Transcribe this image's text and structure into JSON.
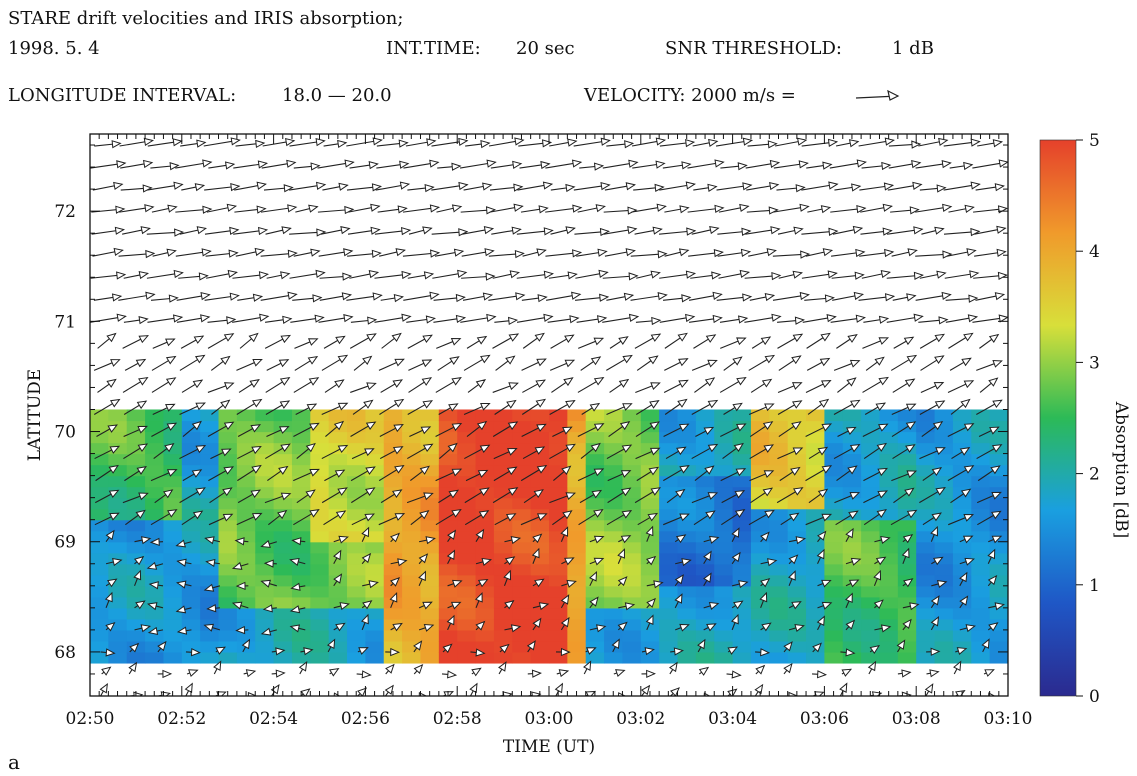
{
  "header": {
    "title": "STARE drift velocities and IRIS absorption;",
    "date": "1998. 5. 4",
    "int_time_label": "INT.TIME:",
    "int_time_value": "20 sec",
    "snr_label": "SNR THRESHOLD:",
    "snr_value": "1 dB",
    "lon_label": "LONGITUDE INTERVAL:",
    "lon_value": "18.0 —  20.0",
    "velocity_label": "VELOCITY: 2000 m/s ="
  },
  "panel_label": "a",
  "chart_data": {
    "type": "heatmap",
    "overlay": "vector-field",
    "title": "STARE drift velocities and IRIS absorption;",
    "xlabel": "TIME (UT)",
    "ylabel": "LATITUDE",
    "colorbar_label": "Absorption [dB]",
    "xlim": [
      "02:50",
      "03:10"
    ],
    "ylim": [
      67.6,
      72.7
    ],
    "x_ticks": [
      "02:50",
      "02:52",
      "02:54",
      "02:56",
      "02:58",
      "03:00",
      "03:02",
      "03:04",
      "03:06",
      "03:08",
      "03:10"
    ],
    "y_ticks": [
      "68",
      "69",
      "70",
      "71",
      "72"
    ],
    "colorbar_ticks": [
      "0",
      "1",
      "2",
      "3",
      "4",
      "5"
    ],
    "colorbar_range": [
      0,
      5
    ],
    "colormap": [
      "#2b2a8f",
      "#1f57c6",
      "#1a9fe0",
      "#2cba57",
      "#d8df3a",
      "#f09a2b",
      "#e5412b"
    ],
    "heatmap": {
      "lat_range": [
        67.9,
        70.2
      ],
      "time_range": [
        "02:50",
        "03:10"
      ],
      "time_step_min": 0.4,
      "lat_rows": [
        70.1,
        69.9,
        69.7,
        69.5,
        69.3,
        69.1,
        68.9,
        68.7,
        68.5,
        68.3,
        68.1,
        67.95
      ],
      "regions": [
        {
          "t": [
            "02:50",
            "02:52"
          ],
          "lat": [
            69.2,
            70.2
          ],
          "dB": 2.6
        },
        {
          "t": [
            "02:50",
            "02:53"
          ],
          "lat": [
            67.9,
            69.2
          ],
          "dB": 1.6
        },
        {
          "t": [
            "02:53",
            "02:56.5"
          ],
          "lat": [
            68.4,
            70.2
          ],
          "dB": 2.8
        },
        {
          "t": [
            "02:55",
            "02:56.5"
          ],
          "lat": [
            69.0,
            70.2
          ],
          "dB": 3.4
        },
        {
          "t": [
            "02:56.5",
            "02:57.5"
          ],
          "lat": [
            67.9,
            70.2
          ],
          "dB": 4.0
        },
        {
          "t": [
            "02:57.5",
            "03:00.3"
          ],
          "lat": [
            67.9,
            70.2
          ],
          "dB": 5.0
        },
        {
          "t": [
            "03:00.3",
            "03:01"
          ],
          "lat": [
            67.9,
            70.2
          ],
          "dB": 4.0
        },
        {
          "t": [
            "03:01",
            "03:02.5"
          ],
          "lat": [
            68.4,
            70.2
          ],
          "dB": 2.9
        },
        {
          "t": [
            "03:02.5",
            "03:04.5"
          ],
          "lat": [
            68.6,
            69.6
          ],
          "dB": 1.2
        },
        {
          "t": [
            "03:04.5",
            "03:06"
          ],
          "lat": [
            69.3,
            70.2
          ],
          "dB": 3.6
        },
        {
          "t": [
            "03:06",
            "03:08"
          ],
          "lat": [
            67.9,
            69.2
          ],
          "dB": 2.6
        },
        {
          "t": [
            "03:08",
            "03:10"
          ],
          "lat": [
            67.9,
            70.2
          ],
          "dB": 1.6
        }
      ]
    },
    "vectors": {
      "description_rows_lat": [
        72.6,
        72.4,
        72.2,
        72.0,
        71.8,
        71.6,
        71.4,
        71.2,
        71.0,
        70.8,
        70.6,
        70.4,
        70.2,
        70.0,
        69.8,
        69.6,
        69.4,
        69.2,
        69.0,
        68.8,
        68.6,
        68.4,
        68.2,
        68.0,
        67.8,
        67.6
      ],
      "reference_speed_ms": 2000
    }
  }
}
